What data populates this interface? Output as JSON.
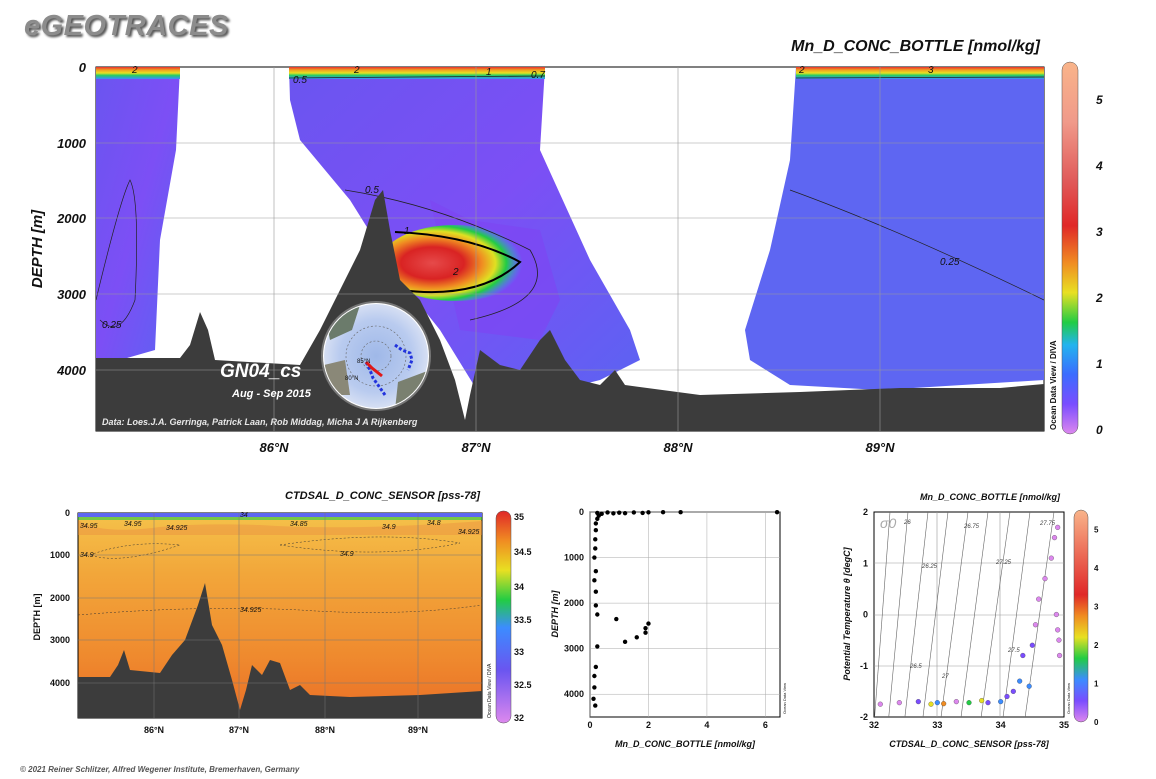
{
  "brand": {
    "logo": "eGEOTRACES"
  },
  "footer": {
    "copyright": "© 2021 Reiner Schlitzer, Alfred Wegener Institute, Bremerhaven, Germany"
  },
  "colors": {
    "odv_low": "#dd88ee",
    "odv_mid": "#22cc44",
    "odv_high": "#f9b48a",
    "land": "#3c3c3c",
    "no_data": "#ffffff"
  },
  "main_section": {
    "title": "Mn_D_CONC_BOTTLE [nmol/kg]",
    "ylabel": "DEPTH [m]",
    "section_label": "GN04_cs",
    "date_label": "Aug - Sep 2015",
    "credits": "Data: Loes.J.A. Gerringa, Patrick Laan, Rob Middag, Micha J A Rijkenberg",
    "colorbar_caption": "Ocean Data View / DIVA",
    "y_ticks": [
      "0",
      "1000",
      "2000",
      "3000",
      "4000"
    ],
    "x_ticks": [
      "86°N",
      "87°N",
      "88°N",
      "89°N"
    ],
    "colorbar_ticks": [
      "0",
      "1",
      "2",
      "3",
      "4",
      "5"
    ],
    "contour_labels": [
      "2",
      "2",
      "1",
      "0.7",
      "2",
      "3",
      "0.5",
      "0.5",
      "1",
      "2",
      "0.25",
      "0.25"
    ],
    "map_labels": [
      "85°N",
      "80°N"
    ]
  },
  "salinity_section": {
    "title": "CTDSAL_D_CONC_SENSOR [pss-78]",
    "ylabel": "DEPTH [m]",
    "colorbar_caption": "Ocean Data View / DIVA",
    "y_ticks": [
      "0",
      "1000",
      "2000",
      "3000",
      "4000"
    ],
    "x_ticks": [
      "86°N",
      "87°N",
      "88°N",
      "89°N"
    ],
    "colorbar_ticks": [
      "35",
      "34.5",
      "34",
      "33.5",
      "33",
      "32.5",
      "32"
    ],
    "contour_labels": [
      "34.95",
      "34.95",
      "34.925",
      "34.85",
      "34.9",
      "34.8",
      "34.925",
      "34.9",
      "34.9",
      "34.925",
      "34"
    ]
  },
  "chart_data": [
    {
      "type": "heatmap",
      "title": "Mn_D_CONC_BOTTLE [nmol/kg]",
      "ylabel": "DEPTH [m]",
      "x_ticks": [
        "86°N",
        "87°N",
        "88°N",
        "89°N"
      ],
      "ylim": [
        4800,
        0
      ],
      "colorbar_range": [
        0,
        5.5
      ],
      "contour_levels": [
        0.25,
        0.5,
        0.7,
        1,
        2,
        3
      ],
      "max_feature": {
        "latitude": 86.7,
        "depth": 2600,
        "value": 3.5
      },
      "surface_max_value": 5.5
    },
    {
      "type": "heatmap",
      "title": "CTDSAL_D_CONC_SENSOR [pss-78]",
      "ylabel": "DEPTH [m]",
      "x_ticks": [
        "86°N",
        "87°N",
        "88°N",
        "89°N"
      ],
      "ylim": [
        4800,
        0
      ],
      "colorbar_range": [
        32,
        35
      ],
      "contour_levels": [
        34.8,
        34.85,
        34.9,
        34.925,
        34.95
      ]
    },
    {
      "type": "scatter",
      "xlabel": "Mn_D_CONC_BOTTLE [nmol/kg]",
      "ylabel": "DEPTH [m]",
      "xlim": [
        0,
        6.5
      ],
      "ylim": [
        4500,
        0
      ],
      "x_ticks": [
        "0",
        "2",
        "4",
        "6"
      ],
      "y_ticks": [
        "0",
        "1000",
        "2000",
        "3000",
        "4000"
      ],
      "caption": "Ocean Data View",
      "points": [
        {
          "x": 0.25,
          "y": 20
        },
        {
          "x": 0.6,
          "y": 10
        },
        {
          "x": 1.0,
          "y": 15
        },
        {
          "x": 1.5,
          "y": 10
        },
        {
          "x": 2.0,
          "y": 8
        },
        {
          "x": 2.5,
          "y": 5
        },
        {
          "x": 3.1,
          "y": 5
        },
        {
          "x": 6.4,
          "y": 5
        },
        {
          "x": 0.4,
          "y": 40
        },
        {
          "x": 0.8,
          "y": 30
        },
        {
          "x": 1.2,
          "y": 25
        },
        {
          "x": 1.8,
          "y": 20
        },
        {
          "x": 0.3,
          "y": 80
        },
        {
          "x": 0.25,
          "y": 150
        },
        {
          "x": 0.2,
          "y": 250
        },
        {
          "x": 0.2,
          "y": 400
        },
        {
          "x": 0.18,
          "y": 600
        },
        {
          "x": 0.18,
          "y": 800
        },
        {
          "x": 0.15,
          "y": 1000
        },
        {
          "x": 0.2,
          "y": 1300
        },
        {
          "x": 0.15,
          "y": 1500
        },
        {
          "x": 0.2,
          "y": 1750
        },
        {
          "x": 0.2,
          "y": 2050
        },
        {
          "x": 0.25,
          "y": 2250
        },
        {
          "x": 0.9,
          "y": 2350
        },
        {
          "x": 2.0,
          "y": 2450
        },
        {
          "x": 1.9,
          "y": 2550
        },
        {
          "x": 1.9,
          "y": 2650
        },
        {
          "x": 1.6,
          "y": 2750
        },
        {
          "x": 1.2,
          "y": 2850
        },
        {
          "x": 0.25,
          "y": 2950
        },
        {
          "x": 0.2,
          "y": 3400
        },
        {
          "x": 0.15,
          "y": 3600
        },
        {
          "x": 0.15,
          "y": 3850
        },
        {
          "x": 0.12,
          "y": 4100
        },
        {
          "x": 0.18,
          "y": 4250
        }
      ]
    },
    {
      "type": "scatter",
      "title": "Mn_D_CONC_BOTTLE [nmol/kg]",
      "xlabel": "CTDSAL_D_CONC_SENSOR [pss-78]",
      "ylabel": "Potential Temperature θ [degC]",
      "xlim": [
        32,
        35
      ],
      "ylim": [
        -2,
        2
      ],
      "x_ticks": [
        "32",
        "33",
        "34",
        "35"
      ],
      "y_ticks": [
        "2",
        "1",
        "0",
        "-1",
        "-2"
      ],
      "colorbar_range": [
        0,
        5.5
      ],
      "colorbar_ticks": [
        "0",
        "1",
        "2",
        "3",
        "4",
        "5"
      ],
      "density_label": "σ0",
      "isopycnal_labels": [
        "26",
        "26.25",
        "26.5",
        "26.75",
        "27",
        "27.25",
        "27.5",
        "27.75"
      ],
      "caption": "Ocean Data View",
      "points": [
        {
          "x": 32.1,
          "y": -1.75,
          "v": 0.2
        },
        {
          "x": 32.4,
          "y": -1.72,
          "v": 0.3
        },
        {
          "x": 32.7,
          "y": -1.7,
          "v": 0.6
        },
        {
          "x": 32.9,
          "y": -1.75,
          "v": 2.2
        },
        {
          "x": 33.0,
          "y": -1.72,
          "v": 1.2
        },
        {
          "x": 33.1,
          "y": -1.74,
          "v": 2.8
        },
        {
          "x": 33.3,
          "y": -1.7,
          "v": 0.5
        },
        {
          "x": 33.5,
          "y": -1.72,
          "v": 1.8
        },
        {
          "x": 33.7,
          "y": -1.68,
          "v": 2.4
        },
        {
          "x": 33.8,
          "y": -1.72,
          "v": 0.9
        },
        {
          "x": 34.0,
          "y": -1.7,
          "v": 1.5
        },
        {
          "x": 34.1,
          "y": -1.6,
          "v": 1.0
        },
        {
          "x": 34.2,
          "y": -1.5,
          "v": 0.7
        },
        {
          "x": 34.3,
          "y": -1.3,
          "v": 1.2
        },
        {
          "x": 34.45,
          "y": -1.4,
          "v": 1.6
        },
        {
          "x": 34.35,
          "y": -0.8,
          "v": 0.6
        },
        {
          "x": 34.5,
          "y": -0.6,
          "v": 0.8
        },
        {
          "x": 34.55,
          "y": -0.2,
          "v": 0.5
        },
        {
          "x": 34.6,
          "y": 0.3,
          "v": 0.3
        },
        {
          "x": 34.7,
          "y": 0.7,
          "v": 0.2
        },
        {
          "x": 34.8,
          "y": 1.1,
          "v": 0.2
        },
        {
          "x": 34.85,
          "y": 1.5,
          "v": 0.1
        },
        {
          "x": 34.9,
          "y": 1.7,
          "v": 0.1
        },
        {
          "x": 34.88,
          "y": 0.0,
          "v": 0.1
        },
        {
          "x": 34.9,
          "y": -0.3,
          "v": 0.15
        },
        {
          "x": 34.92,
          "y": -0.5,
          "v": 0.2
        },
        {
          "x": 34.93,
          "y": -0.8,
          "v": 0.25
        }
      ]
    }
  ]
}
